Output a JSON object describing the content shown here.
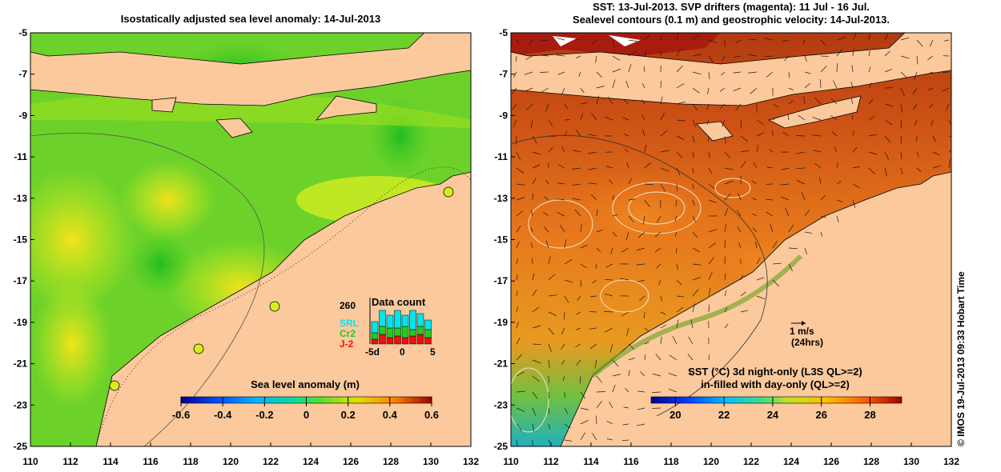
{
  "left_panel": {
    "title": "Isostatically adjusted sea level anomaly: 14-Jul-2013",
    "colorbar_label": "Sea level anomaly (m)",
    "colorbar_ticks": [
      "-0.6",
      "-0.4",
      "-0.2",
      "0",
      "0.2",
      "0.4",
      "0.6"
    ],
    "colorbar_range": [
      -0.6,
      0.6
    ],
    "data_count": {
      "title": "Data count",
      "max_label": "260",
      "series": [
        {
          "name": "SRL",
          "color": "#00e5ee"
        },
        {
          "name": "Cr2",
          "color": "#22cc22"
        },
        {
          "name": "J-2",
          "color": "#ee1111"
        }
      ],
      "x_ticks": [
        "-5d",
        "0",
        "5"
      ]
    }
  },
  "right_panel": {
    "title_lines": [
      "SST: 13-Jul-2013. SVP drifters (magenta): 11 Jul - 16 Jul.",
      "Sealevel contours (0.1 m) and geostrophic velocity: 14-Jul-2013."
    ],
    "velocity_label": "1 m/s",
    "velocity_sublabel": "(24hrs)",
    "sst_label_line1": "SST (°C)  3d night-only (L3S QL>=2)",
    "sst_label_line2": "in-filled with day-only (QL>=2)",
    "colorbar_ticks": [
      "20",
      "22",
      "24",
      "26",
      "28"
    ],
    "colorbar_range": [
      19,
      29.3
    ]
  },
  "axes": {
    "y_ticks": [
      "-5",
      "-7",
      "-9",
      "-11",
      "-13",
      "-15",
      "-17",
      "-19",
      "-21",
      "-23",
      "-25"
    ],
    "x_ticks": [
      "110",
      "112",
      "114",
      "116",
      "118",
      "120",
      "122",
      "124",
      "126",
      "128",
      "130",
      "132"
    ],
    "lon_range": [
      110,
      132
    ],
    "lat_range": [
      -25,
      -5
    ]
  },
  "credit": "© IMOS 19-Jul-2013 09:33 Hobart Time",
  "colors": {
    "land": "#fcc99c",
    "ocean_green": "#44cc22",
    "ocean_yellow": "#d6ee1e",
    "sst_orange": "#e8701a",
    "sst_dark": "#b84a10"
  }
}
